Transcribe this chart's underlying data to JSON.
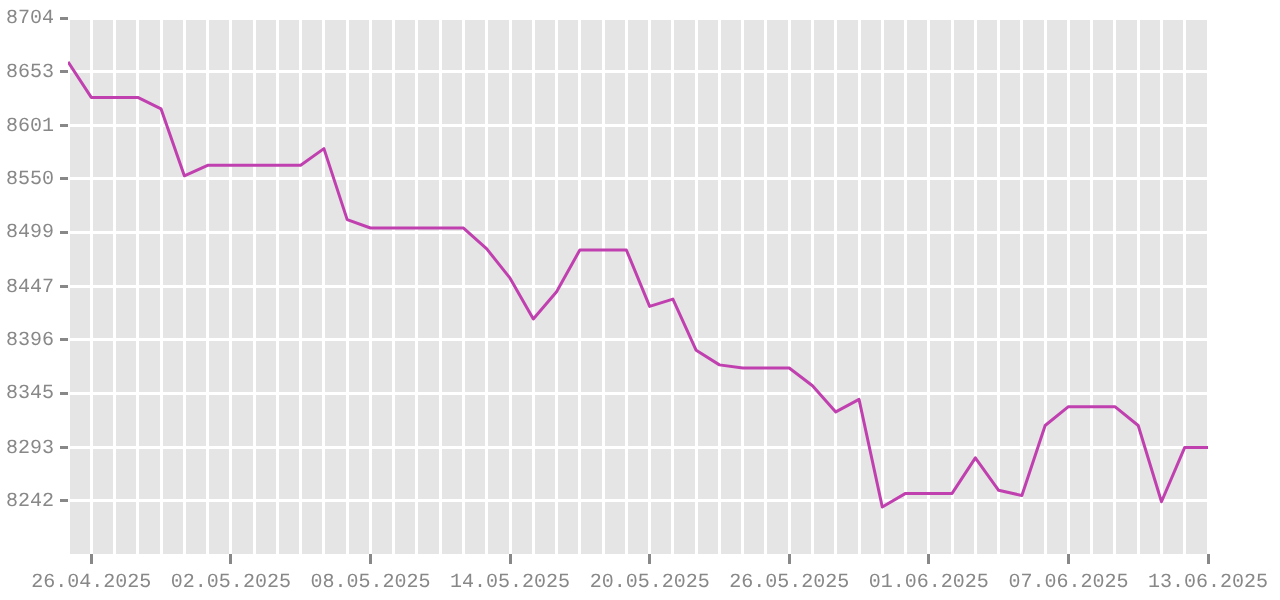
{
  "chart_data": {
    "type": "line",
    "x": [
      "2025-04-25",
      "2025-04-26",
      "2025-04-27",
      "2025-04-28",
      "2025-04-29",
      "2025-04-30",
      "2025-05-01",
      "2025-05-02",
      "2025-05-03",
      "2025-05-04",
      "2025-05-05",
      "2025-05-06",
      "2025-05-07",
      "2025-05-08",
      "2025-05-09",
      "2025-05-10",
      "2025-05-11",
      "2025-05-12",
      "2025-05-13",
      "2025-05-14",
      "2025-05-15",
      "2025-05-16",
      "2025-05-17",
      "2025-05-18",
      "2025-05-19",
      "2025-05-20",
      "2025-05-21",
      "2025-05-22",
      "2025-05-23",
      "2025-05-24",
      "2025-05-25",
      "2025-05-26",
      "2025-05-27",
      "2025-05-28",
      "2025-05-29",
      "2025-05-30",
      "2025-05-31",
      "2025-06-01",
      "2025-06-02",
      "2025-06-03",
      "2025-06-04",
      "2025-06-05",
      "2025-06-06",
      "2025-06-07",
      "2025-06-08",
      "2025-06-09",
      "2025-06-10",
      "2025-06-11",
      "2025-06-12",
      "2025-06-13"
    ],
    "series": [
      {
        "color": "#c040b0",
        "values": [
          8662,
          8628,
          8628,
          8628,
          8617,
          8553,
          8563,
          8563,
          8563,
          8563,
          8563,
          8579,
          8511,
          8503,
          8503,
          8503,
          8503,
          8503,
          8483,
          8455,
          8416,
          8442,
          8482,
          8482,
          8482,
          8428,
          8435,
          8386,
          8372,
          8369,
          8369,
          8369,
          8352,
          8327,
          8339,
          8236,
          8249,
          8249,
          8249,
          8283,
          8252,
          8247,
          8314,
          8332,
          8332,
          8332,
          8314,
          8241,
          8293,
          8293
        ]
      }
    ],
    "xlim": [
      "2025-04-25",
      "2025-06-13"
    ],
    "xticks": [
      {
        "value": "2025-04-26",
        "label": "26.04.2025"
      },
      {
        "value": "2025-05-02",
        "label": "02.05.2025"
      },
      {
        "value": "2025-05-08",
        "label": "08.05.2025"
      },
      {
        "value": "2025-05-14",
        "label": "14.05.2025"
      },
      {
        "value": "2025-05-20",
        "label": "20.05.2025"
      },
      {
        "value": "2025-05-26",
        "label": "26.05.2025"
      },
      {
        "value": "2025-06-01",
        "label": "01.06.2025"
      },
      {
        "value": "2025-06-07",
        "label": "07.06.2025"
      },
      {
        "value": "2025-06-13",
        "label": "13.06.2025"
      }
    ],
    "ylim": [
      8191,
      8704
    ],
    "yticks": [
      8242,
      8293,
      8345,
      8396,
      8447,
      8499,
      8550,
      8601,
      8653,
      8704
    ],
    "grid": true,
    "legend": false,
    "marker": "none",
    "line_style": "solid"
  }
}
